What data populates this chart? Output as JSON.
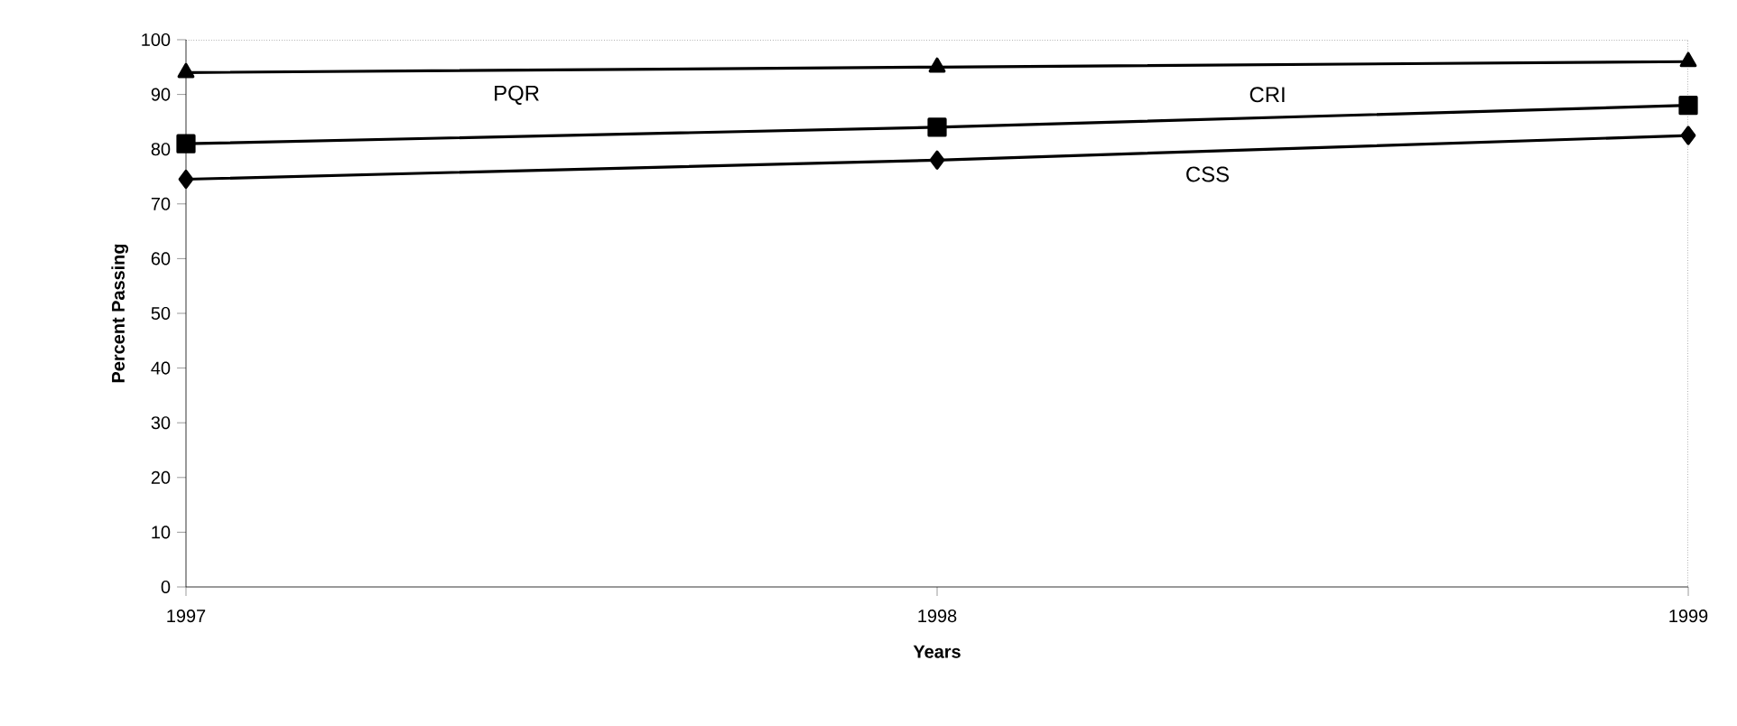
{
  "chart_data": {
    "type": "line",
    "xlabel": "Years",
    "ylabel": "Percent Passing",
    "x": [
      1997,
      1998,
      1999
    ],
    "xlim": [
      1997,
      1999
    ],
    "xticks": [
      1997,
      1998,
      1999
    ],
    "ylim": [
      0,
      100
    ],
    "yticks": [
      0,
      10,
      20,
      30,
      40,
      50,
      60,
      70,
      80,
      90,
      100
    ],
    "grid": false,
    "line_style": "solid",
    "series": [
      {
        "name": "PQR",
        "color": "#000000",
        "marker": "triangle",
        "values": [
          94,
          95,
          96
        ]
      },
      {
        "name": "CRI",
        "color": "#000000",
        "marker": "square",
        "values": [
          81,
          84,
          88
        ]
      },
      {
        "name": "CSS",
        "color": "#000000",
        "marker": "diamond",
        "values": [
          74.5,
          78,
          82.5
        ]
      }
    ]
  }
}
